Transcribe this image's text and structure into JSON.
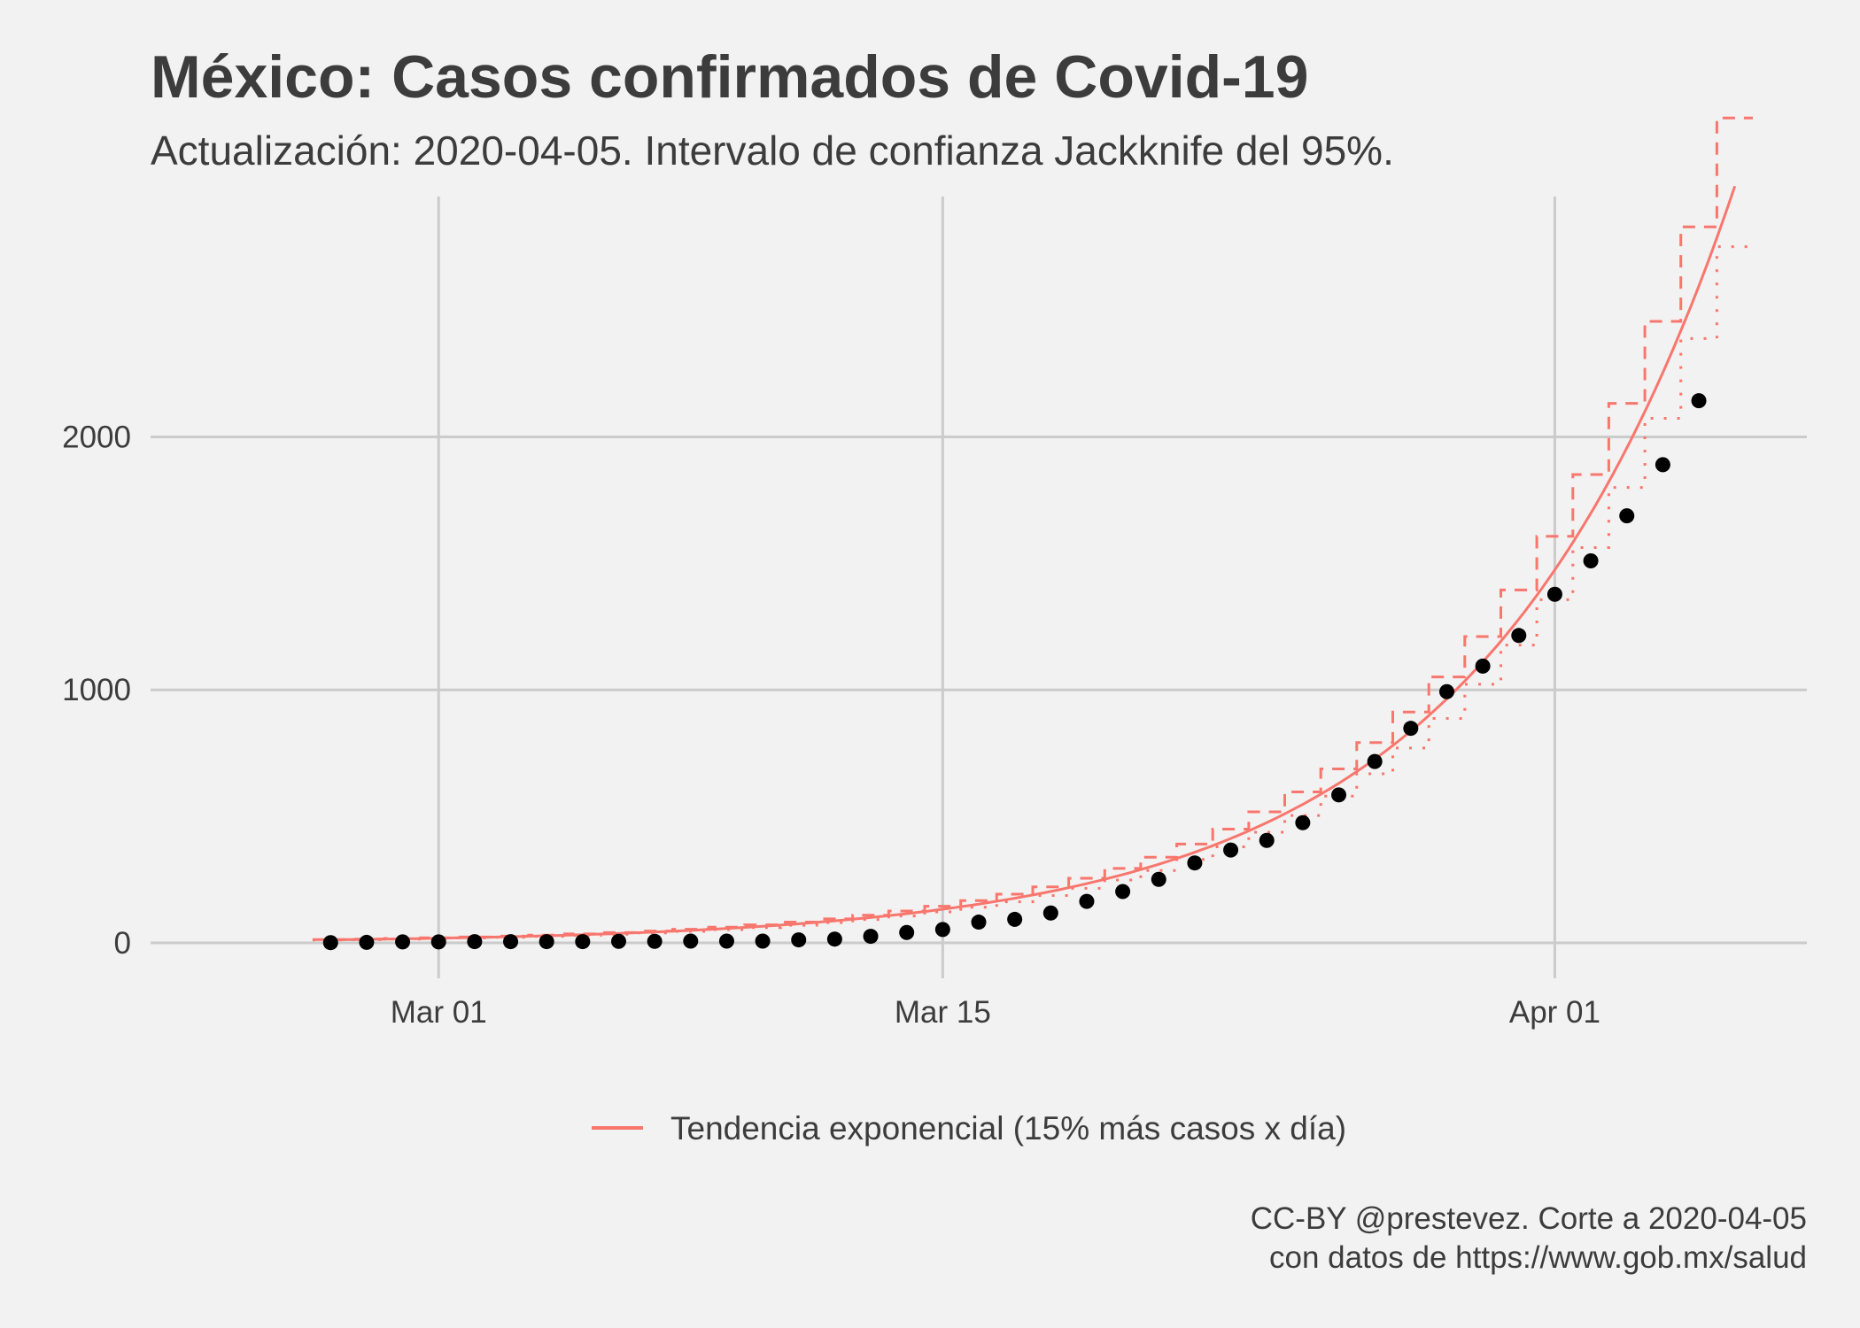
{
  "chart_data": {
    "type": "scatter",
    "title": "México: Casos confirmados de Covid-19",
    "subtitle": "Actualización: 2020-04-05. Intervalo de confianza Jackknife del 95%.",
    "xlabel": "",
    "ylabel": "",
    "ylim": [
      -140,
      2950
    ],
    "xlim": [
      "2020-02-22",
      "2020-04-08"
    ],
    "grid": true,
    "legend_position": "bottom",
    "x_ticks": [
      {
        "date": "2020-03-01",
        "label": "Mar 01"
      },
      {
        "date": "2020-03-15",
        "label": "Mar 15"
      },
      {
        "date": "2020-04-01",
        "label": "Apr 01"
      }
    ],
    "y_ticks": [
      {
        "value": 0,
        "label": "0"
      },
      {
        "value": 1000,
        "label": "1000"
      },
      {
        "value": 2000,
        "label": "2000"
      }
    ],
    "points": [
      {
        "date": "2020-02-27",
        "value": 1
      },
      {
        "date": "2020-02-28",
        "value": 2
      },
      {
        "date": "2020-02-29",
        "value": 4
      },
      {
        "date": "2020-03-01",
        "value": 4
      },
      {
        "date": "2020-03-02",
        "value": 5
      },
      {
        "date": "2020-03-03",
        "value": 5
      },
      {
        "date": "2020-03-04",
        "value": 5
      },
      {
        "date": "2020-03-05",
        "value": 5
      },
      {
        "date": "2020-03-06",
        "value": 6
      },
      {
        "date": "2020-03-07",
        "value": 6
      },
      {
        "date": "2020-03-08",
        "value": 7
      },
      {
        "date": "2020-03-09",
        "value": 7
      },
      {
        "date": "2020-03-10",
        "value": 7
      },
      {
        "date": "2020-03-11",
        "value": 12
      },
      {
        "date": "2020-03-12",
        "value": 15
      },
      {
        "date": "2020-03-13",
        "value": 26
      },
      {
        "date": "2020-03-14",
        "value": 41
      },
      {
        "date": "2020-03-15",
        "value": 53
      },
      {
        "date": "2020-03-16",
        "value": 82
      },
      {
        "date": "2020-03-17",
        "value": 93
      },
      {
        "date": "2020-03-18",
        "value": 118
      },
      {
        "date": "2020-03-19",
        "value": 164
      },
      {
        "date": "2020-03-20",
        "value": 203
      },
      {
        "date": "2020-03-21",
        "value": 251
      },
      {
        "date": "2020-03-22",
        "value": 316
      },
      {
        "date": "2020-03-23",
        "value": 367
      },
      {
        "date": "2020-03-24",
        "value": 405
      },
      {
        "date": "2020-03-25",
        "value": 475
      },
      {
        "date": "2020-03-26",
        "value": 585
      },
      {
        "date": "2020-03-27",
        "value": 717
      },
      {
        "date": "2020-03-28",
        "value": 848
      },
      {
        "date": "2020-03-29",
        "value": 993
      },
      {
        "date": "2020-03-30",
        "value": 1094
      },
      {
        "date": "2020-03-31",
        "value": 1215
      },
      {
        "date": "2020-04-01",
        "value": 1378
      },
      {
        "date": "2020-04-02",
        "value": 1510
      },
      {
        "date": "2020-04-03",
        "value": 1688
      },
      {
        "date": "2020-04-04",
        "value": 1890
      },
      {
        "date": "2020-04-05",
        "value": 2143
      }
    ],
    "trend": {
      "name": "Tendencia exponencial (15% más casos x día)",
      "color": "#f8766d",
      "x": [
        "2020-02-27",
        "2020-04-06"
      ],
      "start_value": 12,
      "daily_growth": 1.152,
      "ci_upper_factor": 1.09,
      "ci_lower_factor": 0.92
    }
  },
  "legend": {
    "label": "Tendencia exponencial (15% más casos x día)"
  },
  "caption": {
    "line1": "CC-BY @prestevez. Corte a 2020-04-05",
    "line2": "con datos de https://www.gob.mx/salud"
  },
  "colors": {
    "background": "#f2f2f2",
    "grid": "#cbcbcb",
    "points": "#000000",
    "trend": "#f8766d",
    "text": "#3c3c3c"
  }
}
